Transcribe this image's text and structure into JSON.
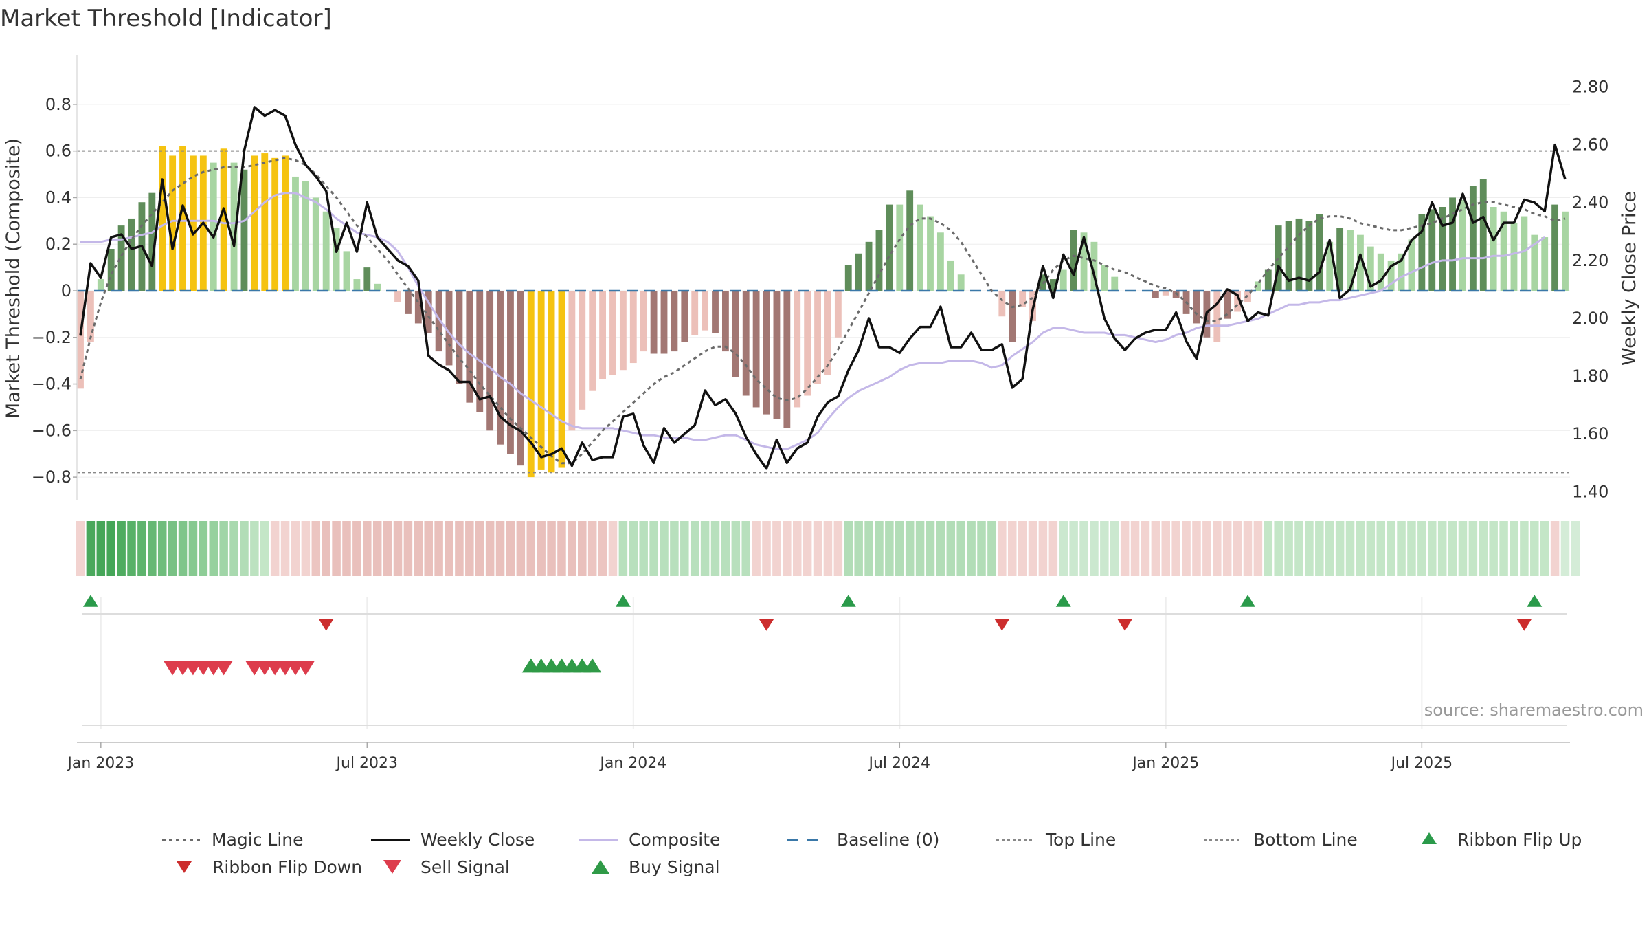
{
  "chart_data": {
    "type": "bar",
    "title": "Market Threshold [Indicator]",
    "ylabel_left": "Market Threshold (Composite)",
    "ylabel_right": "Weekly Close Price",
    "source": "source: sharemaestro.com",
    "ylim_left": [
      -0.9,
      0.9
    ],
    "ylim_right": [
      1.37,
      2.82
    ],
    "yticks_left": [
      "0.8",
      "0.6",
      "0.4",
      "0.2",
      "0",
      "−0.2",
      "−0.4",
      "−0.6",
      "−0.8"
    ],
    "ytick_values_left": [
      0.8,
      0.6,
      0.4,
      0.2,
      0,
      -0.2,
      -0.4,
      -0.6,
      -0.8
    ],
    "yticks_right": [
      "2.80",
      "2.60",
      "2.40",
      "2.20",
      "2.00",
      "1.80",
      "1.60",
      "1.40"
    ],
    "ytick_values_right": [
      2.8,
      2.6,
      2.4,
      2.2,
      2.0,
      1.8,
      1.6,
      1.4
    ],
    "x_tick_labels": [
      "Jan 2023",
      "Jul 2023",
      "Jan 2024",
      "Jul 2024",
      "Jan 2025",
      "Jul 2025"
    ],
    "x_tick_weeks": [
      2,
      28,
      54,
      80,
      106,
      131
    ],
    "top_line": 0.6,
    "bottom_line": -0.78,
    "composite_bars": [
      -0.42,
      -0.22,
      0.05,
      0.18,
      0.28,
      0.31,
      0.38,
      0.42,
      0.62,
      0.58,
      0.62,
      0.58,
      0.58,
      0.55,
      0.61,
      0.55,
      0.52,
      0.58,
      0.59,
      0.57,
      0.58,
      0.49,
      0.47,
      0.4,
      0.34,
      0.27,
      0.17,
      0.05,
      0.1,
      0.03,
      0.0,
      -0.05,
      -0.1,
      -0.14,
      -0.18,
      -0.26,
      -0.32,
      -0.4,
      -0.48,
      -0.52,
      -0.6,
      -0.66,
      -0.7,
      -0.75,
      -0.8,
      -0.77,
      -0.78,
      -0.76,
      -0.6,
      -0.51,
      -0.43,
      -0.38,
      -0.36,
      -0.34,
      -0.31,
      -0.26,
      -0.27,
      -0.27,
      -0.26,
      -0.22,
      -0.19,
      -0.17,
      -0.18,
      -0.26,
      -0.37,
      -0.45,
      -0.5,
      -0.53,
      -0.55,
      -0.59,
      -0.5,
      -0.45,
      -0.4,
      -0.36,
      -0.2,
      0.11,
      0.16,
      0.21,
      0.26,
      0.37,
      0.37,
      0.43,
      0.37,
      0.32,
      0.25,
      0.13,
      0.07,
      0.0,
      0.0,
      0.0,
      -0.11,
      -0.22,
      -0.07,
      -0.13,
      0.07,
      0.05,
      0.09,
      0.26,
      0.25,
      0.21,
      0.11,
      0.06,
      0.0,
      0.0,
      0.0,
      -0.03,
      -0.02,
      -0.03,
      -0.1,
      -0.14,
      -0.2,
      -0.22,
      -0.12,
      -0.09,
      -0.05,
      0.04,
      0.09,
      0.28,
      0.3,
      0.31,
      0.3,
      0.33,
      0.21,
      0.27,
      0.26,
      0.24,
      0.19,
      0.16,
      0.13,
      0.16,
      0.22,
      0.33,
      0.35,
      0.36,
      0.4,
      0.39,
      0.45,
      0.48,
      0.36,
      0.34,
      0.29,
      0.32,
      0.24,
      0.23,
      0.37,
      0.34
    ],
    "bar_colors": [
      "#ecc0b9",
      "#ecc0b9",
      "#a8d5a2",
      "#5f8d5a",
      "#5f8d5a",
      "#5f8d5a",
      "#5f8d5a",
      "#5f8d5a",
      "#f5c311",
      "#f5c311",
      "#f5c311",
      "#f5c311",
      "#f5c311",
      "#a8d5a2",
      "#f5c311",
      "#a8d5a2",
      "#5f8d5a",
      "#f5c311",
      "#f5c311",
      "#f5c311",
      "#f5c311",
      "#a8d5a2",
      "#a8d5a2",
      "#a8d5a2",
      "#a8d5a2",
      "#a8d5a2",
      "#a8d5a2",
      "#a8d5a2",
      "#5f8d5a",
      "#a8d5a2",
      "#ecc0b9",
      "#ecc0b9",
      "#a27773",
      "#a27773",
      "#a27773",
      "#a27773",
      "#a27773",
      "#a27773",
      "#a27773",
      "#a27773",
      "#a27773",
      "#a27773",
      "#a27773",
      "#a27773",
      "#f5c311",
      "#f5c311",
      "#f5c311",
      "#f5c311",
      "#ecc0b9",
      "#ecc0b9",
      "#ecc0b9",
      "#ecc0b9",
      "#ecc0b9",
      "#ecc0b9",
      "#ecc0b9",
      "#ecc0b9",
      "#a27773",
      "#a27773",
      "#a27773",
      "#a27773",
      "#ecc0b9",
      "#ecc0b9",
      "#a27773",
      "#a27773",
      "#a27773",
      "#a27773",
      "#a27773",
      "#a27773",
      "#a27773",
      "#a27773",
      "#ecc0b9",
      "#ecc0b9",
      "#ecc0b9",
      "#ecc0b9",
      "#ecc0b9",
      "#5f8d5a",
      "#5f8d5a",
      "#5f8d5a",
      "#5f8d5a",
      "#5f8d5a",
      "#a8d5a2",
      "#5f8d5a",
      "#a8d5a2",
      "#a8d5a2",
      "#a8d5a2",
      "#a8d5a2",
      "#a8d5a2",
      "#a8d5a2",
      "#a8d5a2",
      "#a8d5a2",
      "#ecc0b9",
      "#a27773",
      "#ecc0b9",
      "#ecc0b9",
      "#5f8d5a",
      "#5f8d5a",
      "#a8d5a2",
      "#5f8d5a",
      "#a8d5a2",
      "#a8d5a2",
      "#a8d5a2",
      "#a8d5a2",
      "#a8d5a2",
      "#a8d5a2",
      "#a8d5a2",
      "#a27773",
      "#ecc0b9",
      "#a27773",
      "#a27773",
      "#a27773",
      "#a27773",
      "#ecc0b9",
      "#a27773",
      "#ecc0b9",
      "#ecc0b9",
      "#a8d5a2",
      "#5f8d5a",
      "#5f8d5a",
      "#5f8d5a",
      "#5f8d5a",
      "#5f8d5a",
      "#5f8d5a",
      "#a8d5a2",
      "#5f8d5a",
      "#a8d5a2",
      "#a8d5a2",
      "#a8d5a2",
      "#a8d5a2",
      "#a8d5a2",
      "#a8d5a2",
      "#a8d5a2",
      "#5f8d5a",
      "#5f8d5a",
      "#5f8d5a",
      "#5f8d5a",
      "#a8d5a2",
      "#5f8d5a",
      "#5f8d5a",
      "#a8d5a2",
      "#a8d5a2",
      "#a8d5a2",
      "#a8d5a2",
      "#a8d5a2",
      "#a8d5a2",
      "#5f8d5a",
      "#a8d5a2"
    ],
    "composite_line": [
      0.21,
      0.21,
      0.21,
      0.22,
      0.22,
      0.23,
      0.24,
      0.25,
      0.28,
      0.3,
      0.3,
      0.3,
      0.3,
      0.3,
      0.29,
      0.29,
      0.3,
      0.34,
      0.38,
      0.41,
      0.42,
      0.42,
      0.4,
      0.38,
      0.35,
      0.31,
      0.28,
      0.25,
      0.24,
      0.23,
      0.21,
      0.17,
      0.1,
      0.02,
      -0.05,
      -0.12,
      -0.18,
      -0.23,
      -0.27,
      -0.3,
      -0.33,
      -0.37,
      -0.4,
      -0.44,
      -0.47,
      -0.5,
      -0.53,
      -0.56,
      -0.58,
      -0.59,
      -0.59,
      -0.59,
      -0.59,
      -0.6,
      -0.61,
      -0.62,
      -0.62,
      -0.63,
      -0.63,
      -0.63,
      -0.64,
      -0.64,
      -0.63,
      -0.62,
      -0.62,
      -0.64,
      -0.66,
      -0.67,
      -0.68,
      -0.68,
      -0.66,
      -0.64,
      -0.61,
      -0.55,
      -0.5,
      -0.46,
      -0.43,
      -0.41,
      -0.39,
      -0.37,
      -0.34,
      -0.32,
      -0.31,
      -0.31,
      -0.31,
      -0.3,
      -0.3,
      -0.3,
      -0.31,
      -0.33,
      -0.32,
      -0.28,
      -0.25,
      -0.22,
      -0.18,
      -0.16,
      -0.16,
      -0.17,
      -0.18,
      -0.18,
      -0.18,
      -0.19,
      -0.19,
      -0.2,
      -0.21,
      -0.22,
      -0.21,
      -0.19,
      -0.18,
      -0.16,
      -0.15,
      -0.15,
      -0.15,
      -0.14,
      -0.13,
      -0.12,
      -0.1,
      -0.08,
      -0.06,
      -0.06,
      -0.05,
      -0.05,
      -0.04,
      -0.04,
      -0.03,
      -0.02,
      -0.01,
      0.0,
      0.03,
      0.06,
      0.08,
      0.1,
      0.12,
      0.13,
      0.13,
      0.14,
      0.14,
      0.14,
      0.15,
      0.15,
      0.16,
      0.17,
      0.2,
      0.23
    ],
    "magic_line": [
      -0.38,
      -0.2,
      -0.05,
      0.07,
      0.15,
      0.22,
      0.28,
      0.33,
      0.38,
      0.43,
      0.46,
      0.49,
      0.51,
      0.52,
      0.53,
      0.53,
      0.53,
      0.54,
      0.55,
      0.56,
      0.57,
      0.56,
      0.54,
      0.5,
      0.45,
      0.4,
      0.34,
      0.28,
      0.23,
      0.18,
      0.13,
      0.07,
      0.01,
      -0.05,
      -0.11,
      -0.17,
      -0.23,
      -0.29,
      -0.34,
      -0.4,
      -0.45,
      -0.5,
      -0.55,
      -0.59,
      -0.63,
      -0.67,
      -0.71,
      -0.74,
      -0.74,
      -0.7,
      -0.65,
      -0.6,
      -0.56,
      -0.52,
      -0.48,
      -0.44,
      -0.4,
      -0.37,
      -0.35,
      -0.32,
      -0.29,
      -0.26,
      -0.24,
      -0.24,
      -0.27,
      -0.32,
      -0.38,
      -0.42,
      -0.46,
      -0.47,
      -0.46,
      -0.42,
      -0.37,
      -0.32,
      -0.25,
      -0.17,
      -0.09,
      -0.01,
      0.07,
      0.15,
      0.22,
      0.28,
      0.31,
      0.31,
      0.29,
      0.26,
      0.21,
      0.14,
      0.07,
      0.0,
      -0.04,
      -0.07,
      -0.06,
      -0.03,
      0.03,
      0.09,
      0.13,
      0.15,
      0.14,
      0.13,
      0.11,
      0.09,
      0.08,
      0.06,
      0.04,
      0.02,
      0.01,
      -0.01,
      -0.05,
      -0.1,
      -0.13,
      -0.13,
      -0.1,
      -0.06,
      -0.02,
      0.03,
      0.09,
      0.14,
      0.19,
      0.24,
      0.28,
      0.31,
      0.32,
      0.32,
      0.31,
      0.29,
      0.28,
      0.27,
      0.26,
      0.26,
      0.27,
      0.28,
      0.29,
      0.31,
      0.33,
      0.35,
      0.37,
      0.38,
      0.38,
      0.37,
      0.36,
      0.35,
      0.33,
      0.32,
      0.3,
      0.31
    ],
    "weekly_close": [
      1.94,
      2.19,
      2.14,
      2.28,
      2.29,
      2.24,
      2.25,
      2.18,
      2.48,
      2.24,
      2.39,
      2.29,
      2.33,
      2.28,
      2.38,
      2.25,
      2.58,
      2.73,
      2.7,
      2.72,
      2.7,
      2.6,
      2.53,
      2.49,
      2.44,
      2.23,
      2.33,
      2.23,
      2.4,
      2.28,
      2.24,
      2.2,
      2.18,
      2.13,
      1.87,
      1.84,
      1.82,
      1.78,
      1.78,
      1.72,
      1.73,
      1.66,
      1.63,
      1.61,
      1.57,
      1.52,
      1.53,
      1.55,
      1.49,
      1.57,
      1.51,
      1.52,
      1.52,
      1.66,
      1.67,
      1.56,
      1.5,
      1.62,
      1.57,
      1.6,
      1.63,
      1.75,
      1.7,
      1.72,
      1.67,
      1.59,
      1.53,
      1.48,
      1.58,
      1.5,
      1.55,
      1.57,
      1.66,
      1.71,
      1.73,
      1.82,
      1.89,
      2.0,
      1.9,
      1.9,
      1.88,
      1.93,
      1.97,
      1.97,
      2.04,
      1.9,
      1.9,
      1.95,
      1.89,
      1.89,
      1.91,
      1.76,
      1.79,
      2.03,
      2.18,
      2.07,
      2.22,
      2.15,
      2.28,
      2.15,
      2.0,
      1.93,
      1.89,
      1.93,
      1.95,
      1.96,
      1.96,
      2.02,
      1.92,
      1.86,
      2.02,
      2.05,
      2.1,
      2.08,
      1.99,
      2.02,
      2.01,
      2.18,
      2.13,
      2.14,
      2.13,
      2.16,
      2.27,
      2.07,
      2.1,
      2.22,
      2.11,
      2.13,
      2.18,
      2.2,
      2.27,
      2.3,
      2.4,
      2.32,
      2.33,
      2.43,
      2.33,
      2.35,
      2.27,
      2.33,
      2.33,
      2.41,
      2.4,
      2.37,
      2.6,
      2.48
    ],
    "ribbon_colors": [
      "#f2d3d0",
      "#4aa85c",
      "#45a658",
      "#45a658",
      "#4fac60",
      "#58b168",
      "#5eb46d",
      "#66b874",
      "#6fbd7c",
      "#78c184",
      "#7fc58a",
      "#86c990",
      "#8ecd97",
      "#96d19e",
      "#a0d5a7",
      "#a9d9af",
      "#b2ddb7",
      "#bce2c0",
      "#c4e6c7",
      "#f2d3d0",
      "#f2d3d0",
      "#f2d3d0",
      "#f2d3d0",
      "#ecc5c1",
      "#e9c0bc",
      "#e9c0bc",
      "#e9c0bc",
      "#e9c0bc",
      "#e9c0bc",
      "#e9c0bc",
      "#e9c0bc",
      "#e9c0bc",
      "#e9c0bc",
      "#e9c0bc",
      "#e9c0bc",
      "#e9c0bc",
      "#e9c0bc",
      "#e9c0bc",
      "#e9c0bc",
      "#e9c0bc",
      "#e9c0bc",
      "#e9c0bc",
      "#e9c0bc",
      "#e9c0bc",
      "#e9c0bc",
      "#e9c0bc",
      "#e9c0bc",
      "#e9c0bc",
      "#e9c0bc",
      "#e9c0bc",
      "#ecc5c1",
      "#ecc5c1",
      "#f2d3d0",
      "#b8e0bd",
      "#b8e0bd",
      "#b8e0bd",
      "#b8e0bd",
      "#b8e0bd",
      "#b8e0bd",
      "#b8e0bd",
      "#b8e0bd",
      "#b8e0bd",
      "#b8e0bd",
      "#b8e0bd",
      "#b8e0bd",
      "#b8e0bd",
      "#f2d3d0",
      "#f2d3d0",
      "#f2d3d0",
      "#f2d3d0",
      "#f2d3d0",
      "#f2d3d0",
      "#f2d3d0",
      "#f2d3d0",
      "#f2d3d0",
      "#b2ddb7",
      "#b2ddb7",
      "#b2ddb7",
      "#b2ddb7",
      "#b2ddb7",
      "#b2ddb7",
      "#b2ddb7",
      "#b2ddb7",
      "#b2ddb7",
      "#b2ddb7",
      "#b2ddb7",
      "#b2ddb7",
      "#b2ddb7",
      "#b2ddb7",
      "#b2ddb7",
      "#f2d3d0",
      "#f2d3d0",
      "#f2d3d0",
      "#f2d3d0",
      "#f2d3d0",
      "#f2d3d0",
      "#cbe8cf",
      "#cbe8cf",
      "#cbe8cf",
      "#cbe8cf",
      "#cbe8cf",
      "#cbe8cf",
      "#f2d3d0",
      "#f2d3d0",
      "#f2d3d0",
      "#f2d3d0",
      "#f2d3d0",
      "#f2d3d0",
      "#f2d3d0",
      "#f2d3d0",
      "#f2d3d0",
      "#f2d3d0",
      "#f2d3d0",
      "#f2d3d0",
      "#f2d3d0",
      "#f2d3d0",
      "#c4e6c7",
      "#c4e6c7",
      "#c4e6c7",
      "#c4e6c7",
      "#c4e6c7",
      "#c4e6c7",
      "#c4e6c7",
      "#c4e6c7",
      "#c4e6c7",
      "#c4e6c7",
      "#c4e6c7",
      "#c4e6c7",
      "#c4e6c7",
      "#c4e6c7",
      "#c4e6c7",
      "#c4e6c7",
      "#c4e6c7",
      "#c4e6c7",
      "#c4e6c7",
      "#c4e6c7",
      "#c4e6c7",
      "#c4e6c7",
      "#c4e6c7",
      "#c4e6c7",
      "#c4e6c7",
      "#c4e6c7",
      "#c4e6c7",
      "#c4e6c7",
      "#f2d3d0",
      "#d4ecd7",
      "#d4ecd7"
    ],
    "ribbon_flip_up_weeks": [
      1,
      53,
      75,
      96,
      114,
      142
    ],
    "ribbon_flip_down_weeks": [
      24,
      67,
      90,
      102,
      141
    ],
    "sell_signal_weeks": [
      9,
      10,
      11,
      12,
      13,
      14,
      17,
      18,
      19,
      20,
      21,
      22
    ],
    "buy_signal_weeks": [
      44,
      45,
      46,
      47,
      48,
      49,
      50
    ],
    "legend": [
      "Magic Line",
      "Weekly Close",
      "Composite",
      "Baseline (0)",
      "Top Line",
      "Bottom Line",
      "Ribbon Flip Up",
      "Ribbon Flip Down",
      "Sell Signal",
      "Buy Signal"
    ],
    "colors": {
      "magic": "#6b6b6b",
      "close": "#111111",
      "composite": "#c4b8e8",
      "baseline": "#3a78a8",
      "refline": "#888888",
      "up": "#2a9a4a",
      "down": "#cc2d2d",
      "sell": "#dd3c4c",
      "buy": "#2f9a47"
    }
  }
}
